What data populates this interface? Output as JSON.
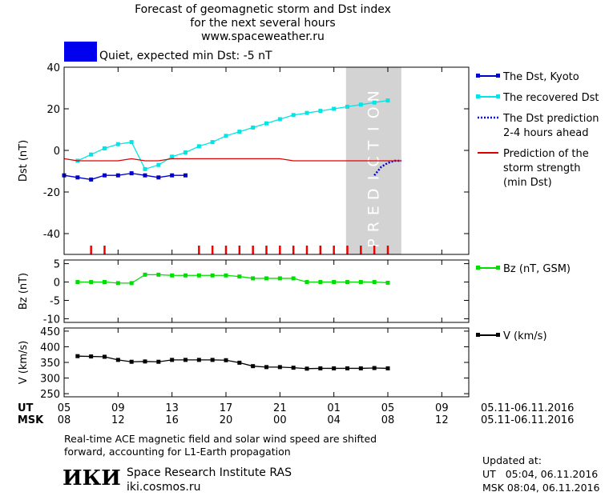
{
  "header": {
    "title_lines": [
      "Forecast of geomagnetic storm and Dst index",
      "for the next several hours",
      "www.spaceweather.ru"
    ],
    "status_text": "Quiet, expected min Dst: -5 nT",
    "status_color": "#0000ee"
  },
  "chart_data": [
    {
      "type": "line",
      "ylabel": "Dst (nT)",
      "ylim": [
        -50,
        40
      ],
      "yticks": [
        40,
        20,
        0,
        -20,
        -40
      ],
      "prediction_label": "PREDICTION",
      "prediction_x_range": [
        25.9,
        30
      ],
      "legend": [
        {
          "label": "The Dst, Kyoto",
          "color": "#0000cc",
          "style": "solid-square"
        },
        {
          "label": "The recovered Dst",
          "color": "#00e5e5",
          "style": "solid-square"
        },
        {
          "label": "The Dst prediction\n2-4 hours ahead",
          "color": "#0000cc",
          "style": "dotted"
        },
        {
          "label": "Prediction of the\nstorm strength\n(min Dst)",
          "color": "#dd0000",
          "style": "solid"
        }
      ],
      "series": [
        {
          "name": "The Dst, Kyoto",
          "color": "#0000cc",
          "x": [
            5,
            6,
            7,
            8,
            9,
            10,
            11,
            12,
            13,
            14
          ],
          "y": [
            -12,
            -13,
            -14,
            -12,
            -12,
            -11,
            -12,
            -13,
            -12,
            -12
          ]
        },
        {
          "name": "The recovered Dst",
          "color": "#00e5e5",
          "x": [
            6,
            7,
            8,
            9,
            10,
            11,
            12,
            13,
            14,
            15,
            16,
            17,
            18,
            19,
            20,
            21,
            22,
            23,
            24,
            25,
            26,
            27,
            28,
            29
          ],
          "y": [
            -5,
            -2,
            1,
            3,
            4,
            -9,
            -7,
            -3,
            -1,
            2,
            4,
            7,
            9,
            11,
            13,
            15,
            17,
            18,
            19,
            20,
            21,
            22,
            23,
            24
          ]
        },
        {
          "name": "The Dst prediction 2-4 hours ahead",
          "color": "#0000cc",
          "x": [
            28,
            28.5,
            29,
            29.5,
            30
          ],
          "y": [
            -12,
            -8,
            -6,
            -5,
            -5
          ]
        },
        {
          "name": "Prediction of the storm strength (min Dst)",
          "color": "#dd0000",
          "x": [
            5,
            6,
            7,
            8,
            9,
            10,
            11,
            12,
            13,
            14,
            15,
            16,
            17,
            18,
            19,
            20,
            21,
            22,
            23,
            24,
            25,
            26,
            27,
            28,
            29,
            30
          ],
          "y": [
            -4,
            -5,
            -5,
            -5,
            -5,
            -4,
            -5,
            -5,
            -4,
            -4,
            -4,
            -4,
            -4,
            -4,
            -4,
            -4,
            -4,
            -5,
            -5,
            -5,
            -5,
            -5,
            -5,
            -5,
            -5,
            -5
          ]
        }
      ],
      "storm_markers_x": [
        7,
        8,
        15,
        16,
        17,
        18,
        19,
        20,
        21,
        22,
        23,
        24,
        25,
        26,
        27,
        28,
        29
      ]
    },
    {
      "type": "line",
      "ylabel": "Bz (nT)",
      "ylim": [
        -11,
        6
      ],
      "yticks": [
        5,
        0,
        -5,
        -10
      ],
      "legend": [
        {
          "label": "Bz (nT, GSM)",
          "color": "#00dd00"
        }
      ],
      "series": [
        {
          "name": "Bz (nT, GSM)",
          "color": "#00dd00",
          "x": [
            6,
            7,
            8,
            9,
            10,
            11,
            12,
            13,
            14,
            15,
            16,
            17,
            18,
            19,
            20,
            21,
            22,
            23,
            24,
            25,
            26,
            27,
            28,
            29
          ],
          "y": [
            0,
            0,
            0,
            -0.3,
            -0.3,
            2,
            2,
            1.8,
            1.8,
            1.8,
            1.8,
            1.8,
            1.5,
            1,
            1,
            1,
            1,
            0,
            0,
            0,
            0,
            0,
            0,
            -0.2
          ]
        }
      ]
    },
    {
      "type": "line",
      "ylabel": "V (km/s)",
      "ylim": [
        240,
        460
      ],
      "yticks": [
        450,
        400,
        350,
        300,
        250
      ],
      "legend": [
        {
          "label": "V (km/s)",
          "color": "#000000"
        }
      ],
      "series": [
        {
          "name": "V (km/s)",
          "color": "#000000",
          "x": [
            6,
            7,
            8,
            9,
            10,
            11,
            12,
            13,
            14,
            15,
            16,
            17,
            18,
            19,
            20,
            21,
            22,
            23,
            24,
            25,
            26,
            27,
            28,
            29
          ],
          "y": [
            370,
            369,
            368,
            358,
            352,
            353,
            352,
            358,
            358,
            358,
            358,
            357,
            349,
            338,
            335,
            335,
            333,
            330,
            331,
            331,
            331,
            331,
            332,
            331
          ]
        }
      ]
    }
  ],
  "time_axis": {
    "xlim": [
      5,
      35
    ],
    "ut_label": "UT",
    "msk_label": "MSK",
    "ticks": [
      {
        "x": 5,
        "ut": "05",
        "msk": "08"
      },
      {
        "x": 9,
        "ut": "09",
        "msk": "12"
      },
      {
        "x": 13,
        "ut": "13",
        "msk": "16"
      },
      {
        "x": 17,
        "ut": "17",
        "msk": "20"
      },
      {
        "x": 21,
        "ut": "21",
        "msk": "00"
      },
      {
        "x": 25,
        "ut": "01",
        "msk": "04"
      },
      {
        "x": 29,
        "ut": "05",
        "msk": "08"
      },
      {
        "x": 33,
        "ut": "09",
        "msk": "12"
      }
    ],
    "date_range_ut": "05.11-06.11.2016",
    "date_range_msk": "05.11-06.11.2016"
  },
  "footer": {
    "note": "Real-time ACE magnetic field and solar wind speed are shifted\nforward, accounting for L1-Earth propagation",
    "logo": "ИКИ",
    "institute": "Space Research Institute RAS",
    "site": "iki.cosmos.ru",
    "updated_label": "Updated at:",
    "updated_ut": "UT   05:04, 06.11.2016",
    "updated_msk": "MSK 08:04, 06.11.2016"
  }
}
